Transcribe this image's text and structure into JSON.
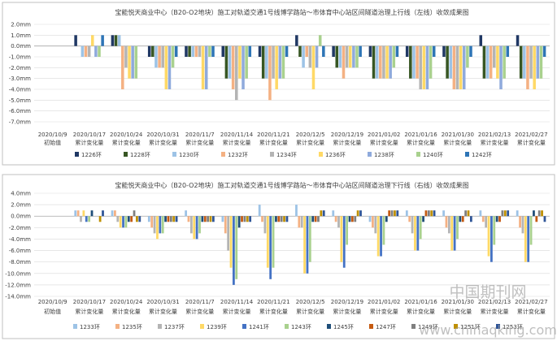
{
  "watermark": {
    "cn": "中国期刊网",
    "url": "www.chinaqking.com"
  },
  "chart_data": [
    {
      "type": "bar",
      "title": "宝能悦天商业中心（B20-O2地块）施工对轨道交通1号线博学路站～市体育中心站区间隧道治理上行线（左线）收敛成果图",
      "categories": [
        [
          "2020/10/9",
          "初始值"
        ],
        [
          "2020/10/17",
          "累计变化量"
        ],
        [
          "2020/10/24",
          "累计变化量"
        ],
        [
          "2020/10/31",
          "累计变化量"
        ],
        [
          "2020/11/7",
          "累计变化量"
        ],
        [
          "2020/11/14",
          "累计变化量"
        ],
        [
          "2020/11/21",
          "累计变化量"
        ],
        [
          "2020/12/5",
          "累计变化量"
        ],
        [
          "2020/12/19",
          "累计变化量"
        ],
        [
          "2021/01/02",
          "累计变化量"
        ],
        [
          "2021/01/16",
          "累计变化量"
        ],
        [
          "2021/01/30",
          "累计变化量"
        ],
        [
          "2021/02/13",
          "累计变化量"
        ],
        [
          "2021/02/27",
          "累计变化量"
        ]
      ],
      "ylim": [
        -7,
        2
      ],
      "yticks": [
        2,
        1,
        0,
        -1,
        -2,
        -3,
        -4,
        -5,
        -6,
        -7
      ],
      "ytick_labels": [
        "2.0mm",
        "1.0mm",
        "0.0mm",
        "-1.0mm",
        "-2.0mm",
        "-3.0mm",
        "-4.0mm",
        "-5.0mm",
        "-6.0mm",
        "-7.0mm"
      ],
      "grid": true,
      "legend_position": "bottom",
      "series": [
        {
          "name": "1226环",
          "color": "#203864",
          "values": [
            0,
            1,
            1,
            -1,
            -1,
            -1,
            -1,
            1,
            -1,
            -1,
            -1,
            -1,
            1,
            1
          ]
        },
        {
          "name": "1228环",
          "color": "#375623",
          "values": [
            0,
            0,
            1,
            -1,
            -1,
            -3,
            -3,
            -1,
            -2,
            -3,
            -3,
            -3,
            -3,
            -3
          ]
        },
        {
          "name": "1230环",
          "color": "#9dc3e6",
          "values": [
            0,
            -1,
            1,
            -2,
            -1,
            -3,
            -3,
            -2,
            -2,
            -3,
            -3,
            -3,
            -3,
            -3
          ]
        },
        {
          "name": "1232环",
          "color": "#f4b183",
          "values": [
            0,
            -1,
            -4,
            -2,
            -1,
            -4,
            -5,
            -1,
            -3,
            -3,
            -3,
            -4,
            -3,
            -4
          ]
        },
        {
          "name": "1234环",
          "color": "#b4b4b4",
          "values": [
            0,
            -1,
            -2,
            -2,
            -1,
            -5,
            -3,
            -2,
            -2,
            -3,
            -4,
            -4,
            -2,
            -3
          ]
        },
        {
          "name": "1236环",
          "color": "#ffd966",
          "values": [
            0,
            1,
            -3,
            -4,
            -4,
            -3,
            -4,
            -4,
            -2,
            -3,
            -4,
            -4,
            -3,
            -4
          ]
        },
        {
          "name": "1238环",
          "color": "#8faadc",
          "values": [
            0,
            -1,
            -3,
            -4,
            -4,
            -4,
            -3,
            -2,
            -2,
            -3,
            -4,
            -4,
            -4,
            -3
          ]
        },
        {
          "name": "1240环",
          "color": "#a9d18e",
          "values": [
            0,
            -1,
            -3,
            -2,
            -1,
            -3,
            -3,
            1,
            -2,
            -2,
            -3,
            -2,
            -3,
            -3
          ]
        },
        {
          "name": "1242环",
          "color": "#2e75b6",
          "values": [
            0,
            1,
            0,
            -1,
            -1,
            -1,
            -1,
            -1,
            -1,
            -1,
            -1,
            -1,
            -1,
            -1
          ]
        }
      ]
    },
    {
      "type": "bar",
      "title": "宝能悦天商业中心（B20-O2地块）施工对轨道交通1号线博学路站～市体育中心站区间隧道治理下行线（右线）收敛成果图",
      "categories": [
        [
          "2020/10/9",
          "初始值"
        ],
        [
          "2020/10/17",
          "累计变化量"
        ],
        [
          "2020/10/24",
          "累计变化量"
        ],
        [
          "2020/10/31",
          "累计变化量"
        ],
        [
          "2020/11/7",
          "累计变化量"
        ],
        [
          "2020/11/14",
          "累计变化量"
        ],
        [
          "2020/11/21",
          "累计变化量"
        ],
        [
          "2020/12/5",
          "累计变化量"
        ],
        [
          "2020/12/19",
          "累计变化量"
        ],
        [
          "2021/01/02",
          "累计变化量"
        ],
        [
          "2021/01/16",
          "累计变化量"
        ],
        [
          "2021/01/30",
          "累计变化量"
        ],
        [
          "2021/02/13",
          "累计变化量"
        ],
        [
          "2021/02/27",
          "累计变化量"
        ]
      ],
      "ylim": [
        -14,
        4
      ],
      "yticks": [
        4,
        2,
        0,
        -2,
        -4,
        -6,
        -8,
        -10,
        -12,
        -14
      ],
      "ytick_labels": [
        "4.0mm",
        "2.0mm",
        "0.0mm",
        "-2.0mm",
        "-4.0mm",
        "-6.0mm",
        "-8.0mm",
        "-10.0mm",
        "-12.0mm",
        "-14.0mm"
      ],
      "grid": true,
      "legend_position": "bottom",
      "series": [
        {
          "name": "1233环",
          "color": "#9dc3e6",
          "values": [
            0,
            1,
            1,
            -1,
            1,
            -1,
            2,
            2,
            1,
            -1,
            1,
            1,
            1,
            1
          ]
        },
        {
          "name": "1235环",
          "color": "#f4b183",
          "values": [
            0,
            1,
            1,
            -2,
            -1,
            -3,
            -1,
            -2,
            -1,
            -2,
            -1,
            -2,
            -1,
            -2
          ]
        },
        {
          "name": "1237环",
          "color": "#b4b4b4",
          "values": [
            0,
            -1,
            -1,
            -3,
            -3,
            -6,
            -3,
            -2,
            -2,
            -3,
            -3,
            -3,
            -2,
            -3
          ]
        },
        {
          "name": "1239环",
          "color": "#ffd966",
          "values": [
            0,
            1,
            -2,
            -4,
            -4,
            -9,
            -9,
            -10,
            -8,
            -7,
            -6,
            -6,
            -7,
            -8
          ]
        },
        {
          "name": "1241环",
          "color": "#4472c4",
          "values": [
            0,
            -1,
            -2,
            -3,
            -4,
            -12,
            -11,
            -10,
            -9,
            -7,
            -6,
            -6,
            -8,
            -8
          ]
        },
        {
          "name": "1243环",
          "color": "#a9d18e",
          "values": [
            0,
            -1,
            -2,
            -3,
            -3,
            -11,
            -9,
            -8,
            -5,
            -5,
            -4,
            -4,
            -5,
            -5
          ]
        },
        {
          "name": "1245环",
          "color": "#1f4e79",
          "values": [
            0,
            1,
            -1,
            -1,
            -1,
            -2,
            -1,
            -1,
            -1,
            -1,
            -1,
            -1,
            -1,
            1
          ]
        },
        {
          "name": "1247环",
          "color": "#c55a11",
          "values": [
            0,
            0,
            -1,
            -1,
            -1,
            -1,
            -1,
            -1,
            -1,
            1,
            1,
            -1,
            -1,
            -1
          ]
        },
        {
          "name": "1249环",
          "color": "#7f7f7f",
          "values": [
            0,
            0,
            1,
            -1,
            -1,
            -1,
            -1,
            -1,
            -1,
            1,
            1,
            1,
            1,
            1
          ]
        },
        {
          "name": "1251环",
          "color": "#bf9000",
          "values": [
            0,
            -1,
            -1,
            -1,
            -1,
            -1,
            -1,
            1,
            1,
            1,
            1,
            1,
            1,
            1
          ]
        },
        {
          "name": "1253环",
          "color": "#2f5597",
          "values": [
            0,
            1,
            -1,
            -1,
            -1,
            -1,
            -1,
            1,
            1,
            1,
            1,
            -1,
            1,
            -1
          ]
        }
      ]
    }
  ]
}
